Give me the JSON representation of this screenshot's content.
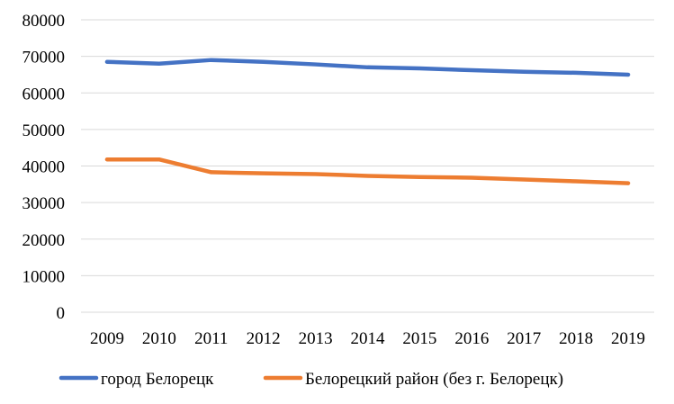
{
  "chart_data": {
    "type": "line",
    "title": "",
    "xlabel": "",
    "ylabel": "",
    "x": [
      "2009",
      "2010",
      "2011",
      "2012",
      "2013",
      "2014",
      "2015",
      "2016",
      "2017",
      "2018",
      "2019"
    ],
    "ylim": [
      0,
      80000
    ],
    "yticks": [
      "0",
      "10000",
      "20000",
      "30000",
      "40000",
      "50000",
      "60000",
      "70000",
      "80000"
    ],
    "grid": true,
    "legend": "bottom",
    "series": [
      {
        "name": "город Белорецк",
        "color": "#4472C4",
        "values": [
          68500,
          68000,
          69000,
          68500,
          67800,
          67000,
          66700,
          66200,
          65800,
          65500,
          65000
        ]
      },
      {
        "name": "Белорецкий район (без г. Белорецк)",
        "color": "#ED7D31",
        "values": [
          41800,
          41800,
          38300,
          38000,
          37800,
          37300,
          37000,
          36800,
          36300,
          35800,
          35300
        ]
      }
    ]
  }
}
